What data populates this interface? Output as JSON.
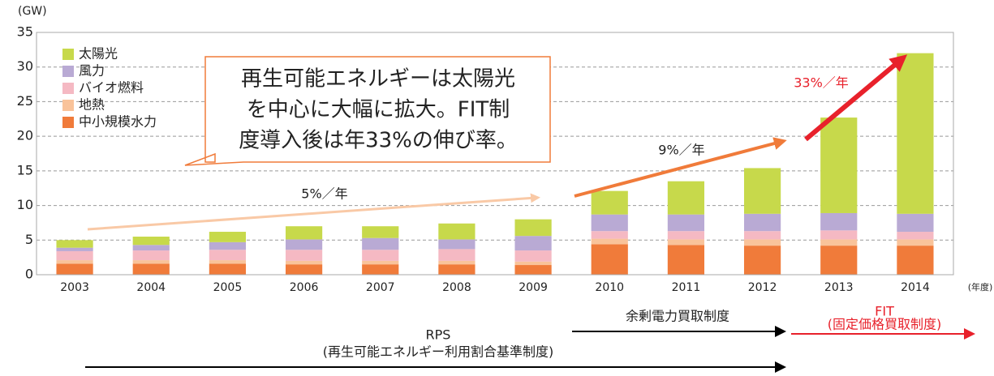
{
  "chart_data": {
    "type": "bar",
    "stacked": true,
    "unit_label": "(GW)",
    "x_unit_label": "(年度)",
    "categories": [
      "2003",
      "2004",
      "2005",
      "2006",
      "2007",
      "2008",
      "2009",
      "2010",
      "2011",
      "2012",
      "2013",
      "2014"
    ],
    "series": [
      {
        "name": "中小規模水力",
        "color": "#f07b3a",
        "values": [
          1.6,
          1.6,
          1.6,
          1.5,
          1.5,
          1.5,
          1.4,
          4.4,
          4.3,
          4.2,
          4.2,
          4.2
        ]
      },
      {
        "name": "地熱",
        "color": "#f9c39a",
        "values": [
          0.5,
          0.5,
          0.5,
          0.5,
          0.5,
          0.5,
          0.5,
          0.8,
          0.8,
          0.9,
          0.9,
          0.9
        ]
      },
      {
        "name": "バイオ燃料",
        "color": "#f5b9c3",
        "values": [
          1.3,
          1.4,
          1.5,
          1.6,
          1.6,
          1.7,
          1.6,
          1.1,
          1.2,
          1.2,
          1.3,
          1.1
        ]
      },
      {
        "name": "風力",
        "color": "#b9aad4",
        "values": [
          0.5,
          0.8,
          1.1,
          1.5,
          1.7,
          1.4,
          2.1,
          2.4,
          2.4,
          2.5,
          2.5,
          2.6
        ]
      },
      {
        "name": "太陽光",
        "color": "#c7d94b",
        "values": [
          1.1,
          1.2,
          1.5,
          1.9,
          1.7,
          2.3,
          2.4,
          3.4,
          4.8,
          6.6,
          13.8,
          23.2
        ]
      }
    ],
    "ylim": [
      0,
      35
    ],
    "yticks": [
      0,
      5,
      10,
      15,
      20,
      25,
      30,
      35
    ],
    "grid": true,
    "legend": "upper left",
    "callout": [
      "再生可能エネルギーは太陽光",
      "を中心に大幅に拡大。FIT制",
      "度導入後は年33%の伸び率。"
    ],
    "annotations": {
      "rate_rps": "5%／年",
      "rate_surplus": "9%／年",
      "rate_fit": "33%／年",
      "surplus": "余剰電力買取制度",
      "fit": "FIT",
      "fit_full": "(固定価格買取制度)",
      "rps": "RPS",
      "rps_full": "(再生可能エネルギー利用割合基準制度)"
    }
  }
}
